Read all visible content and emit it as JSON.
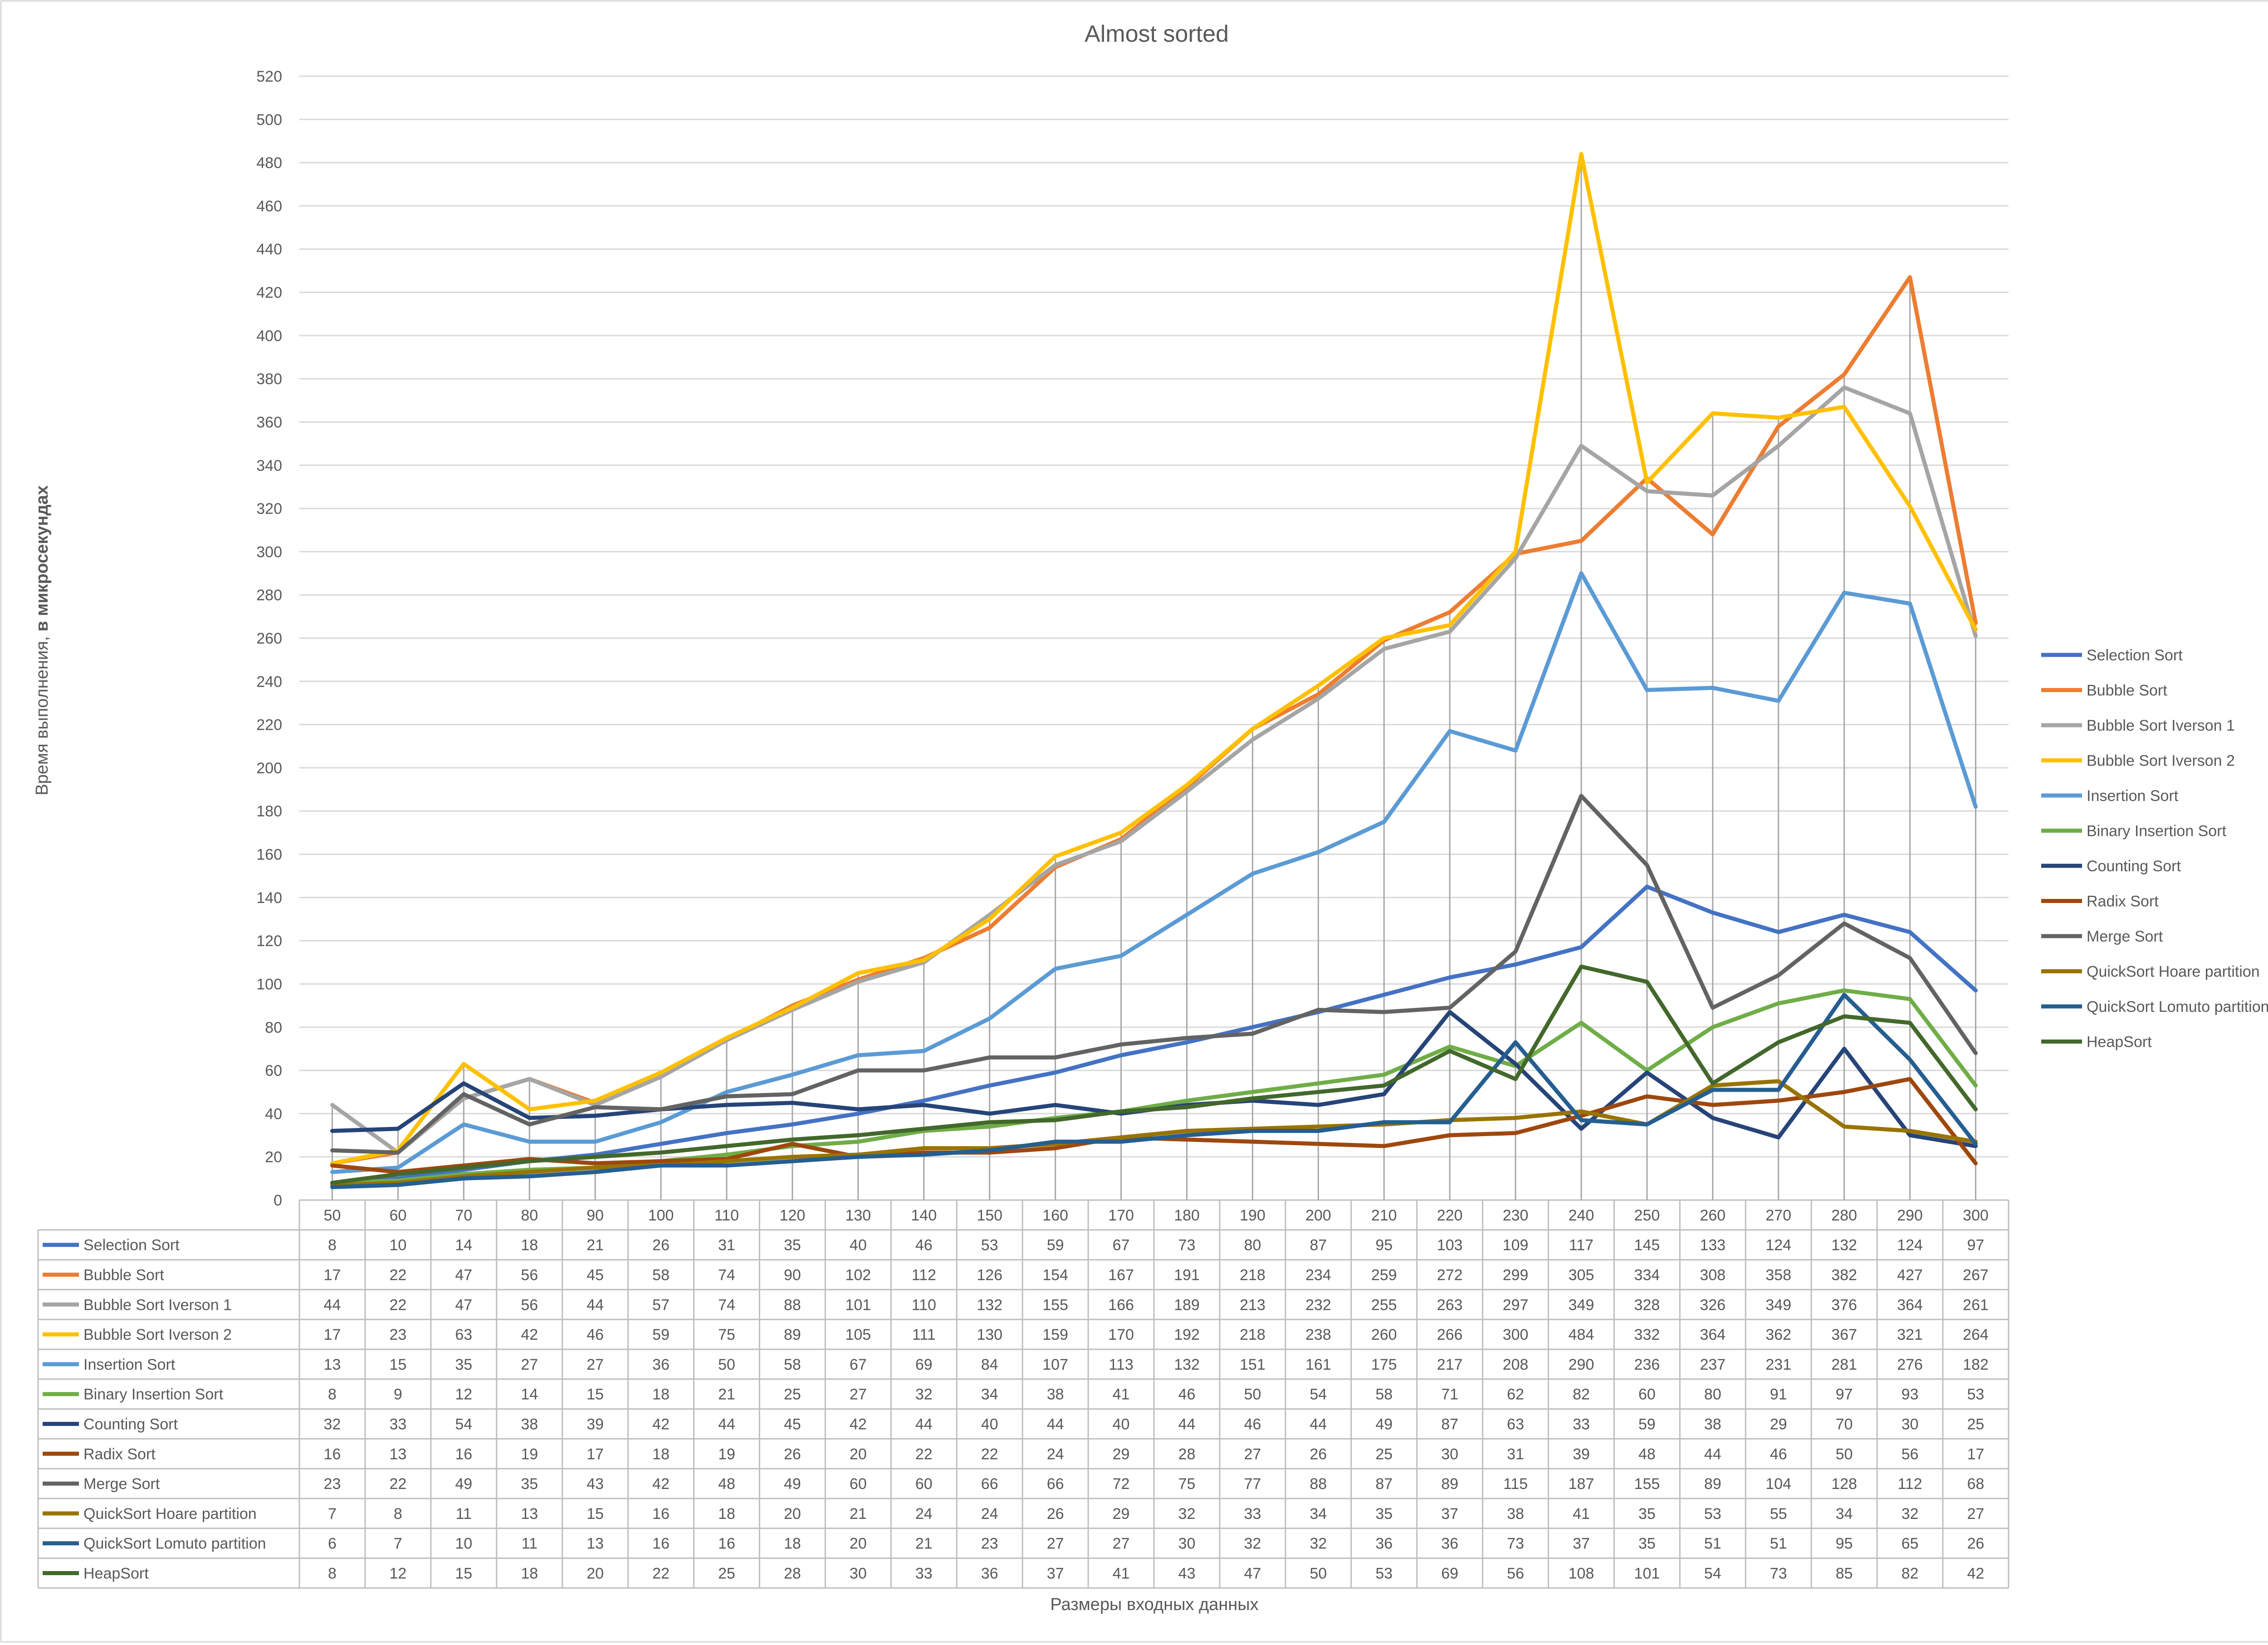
{
  "chart_data": {
    "type": "line",
    "title": "Almost sorted",
    "xlabel": "Размеры  входных данных",
    "ylabel_regular": "Время выполнения, ",
    "ylabel_bold": "в микросекундах",
    "ylim": [
      0,
      520
    ],
    "ytick_step": 20,
    "grid": true,
    "legend_position": "right",
    "data_table": true,
    "categories": [
      50,
      60,
      70,
      80,
      90,
      100,
      110,
      120,
      130,
      140,
      150,
      160,
      170,
      180,
      190,
      200,
      210,
      220,
      230,
      240,
      250,
      260,
      270,
      280,
      290,
      300
    ],
    "series": [
      {
        "name": "Selection Sort",
        "color": "#4472C4",
        "values": [
          8,
          10,
          14,
          18,
          21,
          26,
          31,
          35,
          40,
          46,
          53,
          59,
          67,
          73,
          80,
          87,
          95,
          103,
          109,
          117,
          145,
          133,
          124,
          132,
          124,
          97
        ]
      },
      {
        "name": "Bubble Sort",
        "color": "#ED7D31",
        "values": [
          17,
          22,
          47,
          56,
          45,
          58,
          74,
          90,
          102,
          112,
          126,
          154,
          167,
          191,
          218,
          234,
          259,
          272,
          299,
          305,
          334,
          308,
          358,
          382,
          427,
          267
        ]
      },
      {
        "name": "Bubble Sort Iverson 1",
        "color": "#A5A5A5",
        "values": [
          44,
          22,
          47,
          56,
          44,
          57,
          74,
          88,
          101,
          110,
          132,
          155,
          166,
          189,
          213,
          232,
          255,
          263,
          297,
          349,
          328,
          326,
          349,
          376,
          364,
          261
        ]
      },
      {
        "name": "Bubble Sort Iverson 2",
        "color": "#FFC000",
        "values": [
          17,
          23,
          63,
          42,
          46,
          59,
          75,
          89,
          105,
          111,
          130,
          159,
          170,
          192,
          218,
          238,
          260,
          266,
          300,
          484,
          332,
          364,
          362,
          367,
          321,
          264
        ]
      },
      {
        "name": "Insertion Sort",
        "color": "#5B9BD5",
        "values": [
          13,
          15,
          35,
          27,
          27,
          36,
          50,
          58,
          67,
          69,
          84,
          107,
          113,
          132,
          151,
          161,
          175,
          217,
          208,
          290,
          236,
          237,
          231,
          281,
          276,
          182
        ]
      },
      {
        "name": "Binary Insertion Sort",
        "color": "#70AD47",
        "values": [
          8,
          9,
          12,
          14,
          15,
          18,
          21,
          25,
          27,
          32,
          34,
          38,
          41,
          46,
          50,
          54,
          58,
          71,
          62,
          82,
          60,
          80,
          91,
          97,
          93,
          53
        ]
      },
      {
        "name": "Counting Sort",
        "color": "#264478",
        "values": [
          32,
          33,
          54,
          38,
          39,
          42,
          44,
          45,
          42,
          44,
          40,
          44,
          40,
          44,
          46,
          44,
          49,
          87,
          63,
          33,
          59,
          38,
          29,
          70,
          30,
          25
        ]
      },
      {
        "name": "Radix Sort",
        "color": "#9E480E",
        "values": [
          16,
          13,
          16,
          19,
          17,
          18,
          19,
          26,
          20,
          22,
          22,
          24,
          29,
          28,
          27,
          26,
          25,
          30,
          31,
          39,
          48,
          44,
          46,
          50,
          56,
          17
        ]
      },
      {
        "name": "Merge Sort",
        "color": "#636363",
        "values": [
          23,
          22,
          49,
          35,
          43,
          42,
          48,
          49,
          60,
          60,
          66,
          66,
          72,
          75,
          77,
          88,
          87,
          89,
          115,
          187,
          155,
          89,
          104,
          128,
          112,
          68
        ]
      },
      {
        "name": "QuickSort Hoare partition",
        "color": "#997300",
        "values": [
          7,
          8,
          11,
          13,
          15,
          16,
          18,
          20,
          21,
          24,
          24,
          26,
          29,
          32,
          33,
          34,
          35,
          37,
          38,
          41,
          35,
          53,
          55,
          34,
          32,
          27
        ]
      },
      {
        "name": "QuickSort Lomuto partition",
        "color": "#255E91",
        "values": [
          6,
          7,
          10,
          11,
          13,
          16,
          16,
          18,
          20,
          21,
          23,
          27,
          27,
          30,
          32,
          32,
          36,
          36,
          73,
          37,
          35,
          51,
          51,
          95,
          65,
          26
        ]
      },
      {
        "name": "HeapSort",
        "color": "#43682B",
        "values": [
          8,
          12,
          15,
          18,
          20,
          22,
          25,
          28,
          30,
          33,
          36,
          37,
          41,
          43,
          47,
          50,
          53,
          69,
          56,
          108,
          101,
          54,
          73,
          85,
          82,
          42
        ]
      }
    ]
  }
}
